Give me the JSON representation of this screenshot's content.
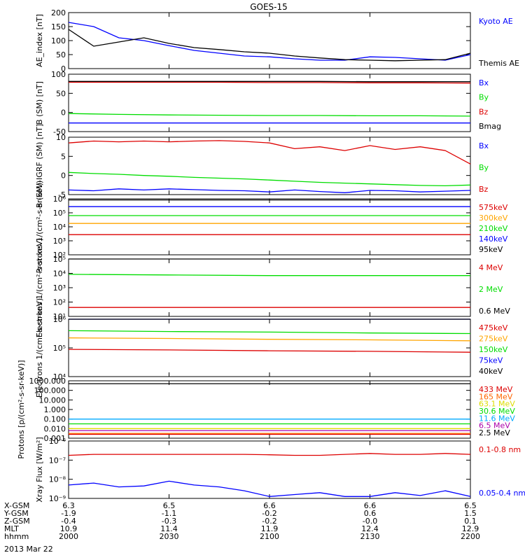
{
  "title": "GOES-15",
  "footer": {
    "rows": [
      {
        "label": "X-GSM",
        "values": [
          "6.3",
          "6.5",
          "6.6",
          "6.6",
          "6.5"
        ]
      },
      {
        "label": "Y-GSM",
        "values": [
          "-1.9",
          "-1.1",
          "-0.2",
          "0.6",
          "1.5"
        ]
      },
      {
        "label": "Z-GSM",
        "values": [
          "-0.4",
          "-0.3",
          "-0.2",
          "-0.0",
          "0.1"
        ]
      },
      {
        "label": "MLT",
        "values": [
          "10.9",
          "11.4",
          "11.9",
          "12.4",
          "12.9"
        ]
      },
      {
        "label": "hhmm",
        "values": [
          "2000",
          "2030",
          "2100",
          "2130",
          "2200"
        ]
      }
    ],
    "date": "2013 Mar 22"
  },
  "colors": {
    "black": "#000000",
    "blue": "#0000ff",
    "green": "#00dd00",
    "red": "#dd0000",
    "orange": "#ffa500",
    "cyan": "#00aaff",
    "purple": "#aa00aa",
    "yellow": "#dddd00"
  },
  "chart_data": [
    {
      "type": "line",
      "ylabel": "AE_index [nT]",
      "ylim": [
        0,
        200
      ],
      "yticks": [
        "0",
        "50",
        "100",
        "150",
        "200"
      ],
      "x": [
        "2000",
        "2007",
        "2015",
        "2022",
        "2030",
        "2037",
        "2045",
        "2052",
        "2100",
        "2107",
        "2115",
        "2122",
        "2130",
        "2137",
        "2145",
        "2152",
        "2200"
      ],
      "series": [
        {
          "name": "Kyoto AE",
          "color": "#0000ff",
          "values": [
            165,
            150,
            110,
            100,
            82,
            65,
            55,
            45,
            42,
            35,
            30,
            30,
            42,
            40,
            35,
            30,
            50
          ]
        },
        {
          "name": "Themis AE",
          "color": "#000000",
          "values": [
            140,
            80,
            95,
            110,
            90,
            75,
            68,
            60,
            55,
            45,
            38,
            32,
            30,
            28,
            30,
            32,
            55
          ]
        }
      ]
    },
    {
      "type": "line",
      "ylabel": "B (SM) [nT]",
      "ylim": [
        -60,
        140
      ],
      "yticks": [
        "-50",
        "0",
        "50",
        "100"
      ],
      "x": [
        "2000",
        "2015",
        "2030",
        "2045",
        "2100",
        "2115",
        "2130",
        "2145",
        "2200"
      ],
      "series": [
        {
          "name": "Bx",
          "color": "#0000ff",
          "values": [
            -30,
            -30,
            -30,
            -30,
            -30,
            -30,
            -30,
            -30,
            -30
          ]
        },
        {
          "name": "By",
          "color": "#00dd00",
          "values": [
            3,
            0,
            -2,
            -3,
            -4,
            -4,
            -5,
            -5,
            -6
          ]
        },
        {
          "name": "Bz",
          "color": "#dd0000",
          "values": [
            112,
            112,
            112,
            112,
            111,
            111,
            110,
            110,
            109
          ]
        },
        {
          "name": "Bmag",
          "color": "#000000",
          "values": [
            115,
            115,
            115,
            115,
            115,
            115,
            114,
            114,
            114
          ]
        }
      ]
    },
    {
      "type": "line",
      "ylabel": "B (SM)-IGRF (SM) [nT]",
      "ylim": [
        -5,
        10
      ],
      "yticks": [
        "-5",
        "0",
        "5",
        "10"
      ],
      "x": [
        "2000",
        "2007",
        "2015",
        "2022",
        "2030",
        "2037",
        "2045",
        "2052",
        "2100",
        "2107",
        "2115",
        "2122",
        "2130",
        "2137",
        "2145",
        "2152",
        "2200"
      ],
      "series": [
        {
          "name": "Bx",
          "color": "#0000ff",
          "values": [
            -3.8,
            -4.0,
            -3.5,
            -3.8,
            -3.5,
            -3.7,
            -3.9,
            -4.0,
            -4.3,
            -3.8,
            -4.2,
            -4.5,
            -3.9,
            -4.0,
            -4.3,
            -4.1,
            -3.9
          ]
        },
        {
          "name": "By",
          "color": "#00dd00",
          "values": [
            0.8,
            0.5,
            0.3,
            0.0,
            -0.2,
            -0.5,
            -0.7,
            -0.9,
            -1.2,
            -1.5,
            -1.8,
            -2.0,
            -2.2,
            -2.4,
            -2.6,
            -2.7,
            -2.5
          ]
        },
        {
          "name": "Bz",
          "color": "#dd0000",
          "values": [
            8.5,
            9.0,
            8.8,
            9.0,
            8.8,
            9.0,
            9.1,
            8.9,
            8.5,
            7.0,
            7.5,
            6.5,
            7.8,
            6.8,
            7.5,
            6.5,
            3.0
          ]
        }
      ]
    },
    {
      "type": "line",
      "ylabel": "Protons 1/(cm²-s-sr-keV)",
      "yscale": "log",
      "ylim": [
        1,
        6
      ],
      "yticks": [
        "10²",
        "10³",
        "10⁴",
        "10⁵",
        "10⁶"
      ],
      "x": [
        "2000",
        "2030",
        "2100",
        "2130",
        "2200"
      ],
      "series": [
        {
          "name": "575keV",
          "color": "#dd0000",
          "values": [
            2.8,
            2.8,
            2.8,
            2.8,
            2.8
          ]
        },
        {
          "name": "300keV",
          "color": "#ffa500",
          "values": [
            3.8,
            3.8,
            3.8,
            3.8,
            3.8
          ]
        },
        {
          "name": "210keV",
          "color": "#00dd00",
          "values": [
            4.5,
            4.5,
            4.5,
            4.5,
            4.5
          ]
        },
        {
          "name": "140keV",
          "color": "#0000ff",
          "values": [
            5.3,
            5.3,
            5.3,
            5.3,
            5.3
          ]
        },
        {
          "name": "95keV",
          "color": "#000000",
          "values": [
            5.9,
            5.9,
            5.9,
            5.9,
            5.9
          ]
        }
      ]
    },
    {
      "type": "line",
      "ylabel": "Electrons 1/(cm²-s-sr-keV)",
      "yscale": "log",
      "ylim": [
        0.5,
        5
      ],
      "yticks": [
        "10¹",
        "10²",
        "10³",
        "10⁴",
        "10⁵"
      ],
      "x": [
        "2000",
        "2030",
        "2100",
        "2130",
        "2200"
      ],
      "series": [
        {
          "name": "4 MeV",
          "color": "#dd0000",
          "values": [
            1.2,
            1.2,
            1.2,
            1.2,
            1.2
          ]
        },
        {
          "name": "2 MeV",
          "color": "#00dd00",
          "values": [
            3.8,
            3.75,
            3.7,
            3.7,
            3.7
          ]
        },
        {
          "name": "0.6 MeV",
          "color": "#000000",
          "values": [
            5.0,
            5.0,
            5.0,
            5.0,
            5.0
          ]
        }
      ]
    },
    {
      "type": "line",
      "ylabel": "Electrons 1/(cm²-s-sr-keV)",
      "yscale": "log",
      "ylim": [
        4,
        6
      ],
      "yticks": [
        "10⁴",
        "10⁵",
        "10⁶"
      ],
      "x": [
        "2000",
        "2030",
        "2100",
        "2130",
        "2200"
      ],
      "series": [
        {
          "name": "475keV",
          "color": "#dd0000",
          "values": [
            4.95,
            4.93,
            4.9,
            4.88,
            4.85
          ]
        },
        {
          "name": "275keV",
          "color": "#ffa500",
          "values": [
            5.35,
            5.33,
            5.3,
            5.28,
            5.25
          ]
        },
        {
          "name": "150keV",
          "color": "#00dd00",
          "values": [
            5.6,
            5.57,
            5.55,
            5.52,
            5.5
          ]
        },
        {
          "name": "75keV",
          "color": "#0000ff",
          "values": [
            6.0,
            6.0,
            6.0,
            6.0,
            6.0
          ]
        },
        {
          "name": "40keV",
          "color": "#000000",
          "values": [
            6.0,
            6.0,
            6.0,
            6.0,
            6.0
          ]
        }
      ]
    },
    {
      "type": "line",
      "ylabel": "Protons [p/(cm²-s-sr-keV)]",
      "yscale": "log",
      "ylim": [
        -3,
        3
      ],
      "yticks": [
        "0.001",
        "0.010",
        "0.100",
        "1.000",
        "10.000",
        "100.000",
        "1000.000"
      ],
      "x": [
        "2000",
        "2030",
        "2100",
        "2130",
        "2200"
      ],
      "series": [
        {
          "name": "433 MeV",
          "color": "#dd0000",
          "values": [
            -2.6,
            -2.6,
            -2.6,
            -2.6,
            -2.6
          ]
        },
        {
          "name": "165 MeV",
          "color": "#ff6600",
          "values": [
            -2.5,
            -2.5,
            -2.5,
            -2.5,
            -2.5
          ]
        },
        {
          "name": "63.1 MeV",
          "color": "#dddd00",
          "values": [
            -2.0,
            -2.0,
            -2.0,
            -2.0,
            -2.0
          ]
        },
        {
          "name": "30.6 MeV",
          "color": "#00dd00",
          "values": [
            -1.5,
            -1.5,
            -1.5,
            -1.5,
            -1.5
          ]
        },
        {
          "name": "11.6 MeV",
          "color": "#00aaff",
          "values": [
            -1.0,
            -1.0,
            -1.0,
            -1.0,
            -1.0
          ]
        },
        {
          "name": "6.5 MeV",
          "color": "#aa00aa",
          "values": [
            -2.2,
            -2.2,
            -2.2,
            -2.2,
            -2.2
          ]
        },
        {
          "name": "2.5 MeV",
          "color": "#000000",
          "values": [
            2.7,
            2.7,
            2.7,
            2.7,
            2.7
          ]
        }
      ]
    },
    {
      "type": "line",
      "ylabel": "Xray Flux [W/m²]",
      "yscale": "log",
      "ylim": [
        -9,
        -6
      ],
      "yticks": [
        "10⁻⁹",
        "10⁻⁸",
        "10⁻⁷",
        "10⁻⁶"
      ],
      "x": [
        "2000",
        "2007",
        "2015",
        "2022",
        "2030",
        "2037",
        "2045",
        "2052",
        "2100",
        "2107",
        "2115",
        "2122",
        "2130",
        "2137",
        "2145",
        "2152",
        "2200"
      ],
      "series": [
        {
          "name": "0.1-0.8 nm",
          "color": "#dd0000",
          "values": [
            -6.75,
            -6.7,
            -6.7,
            -6.7,
            -6.7,
            -6.7,
            -6.7,
            -6.7,
            -6.72,
            -6.75,
            -6.75,
            -6.7,
            -6.65,
            -6.7,
            -6.7,
            -6.65,
            -6.7
          ]
        },
        {
          "name": "0.05-0.4 nm",
          "color": "#0000ff",
          "values": [
            -8.3,
            -8.2,
            -8.4,
            -8.35,
            -8.1,
            -8.3,
            -8.4,
            -8.6,
            -8.9,
            -8.8,
            -8.7,
            -8.9,
            -8.9,
            -8.7,
            -8.85,
            -8.6,
            -8.9
          ]
        }
      ]
    }
  ]
}
